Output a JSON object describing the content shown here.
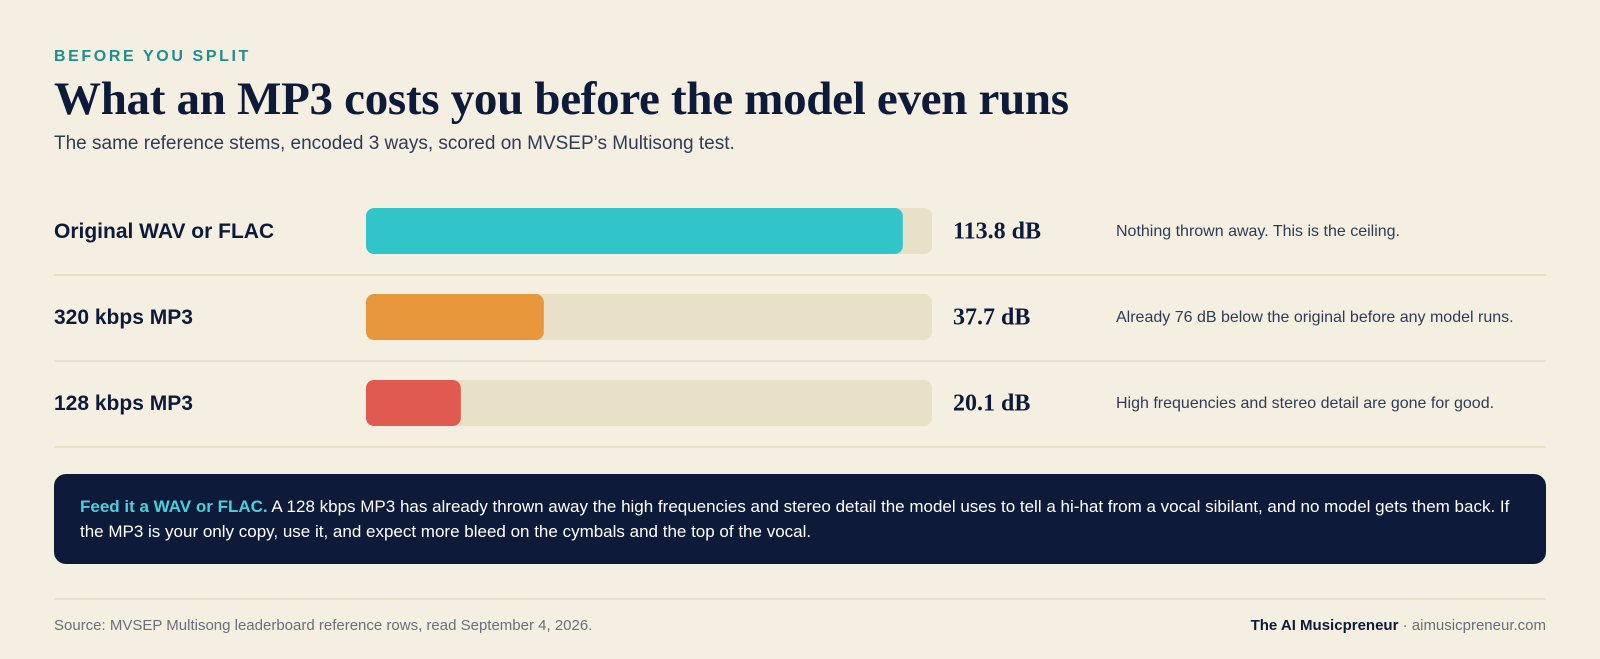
{
  "eyebrow": "BEFORE YOU SPLIT",
  "title": "What an MP3 costs you before the model even runs",
  "subtitle": "The same reference stems, encoded 3 ways, scored on MVSEP’s Multisong test.",
  "chart_data": {
    "type": "bar",
    "orientation": "horizontal",
    "title": "What an MP3 costs you before the model even runs",
    "unit": "dB",
    "xlim": [
      0,
      120
    ],
    "rows": [
      {
        "category": "Original WAV or FLAC",
        "value": 113.8,
        "value_label": "113.8 dB",
        "note": "Nothing thrown away. This is the ceiling.",
        "color": "#31c4c9"
      },
      {
        "category": "320 kbps MP3",
        "value": 37.7,
        "value_label": "37.7 dB",
        "note": "Already 76 dB below the original before any model runs.",
        "color": "#e8973c"
      },
      {
        "category": "128 kbps MP3",
        "value": 20.1,
        "value_label": "20.1 dB",
        "note": "High frequencies and stereo detail are gone for good.",
        "color": "#e05a4f"
      }
    ],
    "track_color": "#e9e0c8"
  },
  "callout": {
    "lead": "Feed it a WAV or FLAC.",
    "body": " A 128 kbps MP3 has already thrown away the high frequencies and stereo detail the model uses to tell a hi-hat from a vocal sibilant, and no model gets them back. If the MP3 is your only copy, use it, and expect more bleed on the cymbals and the top of the vocal."
  },
  "footer": {
    "source": "Source: MVSEP Multisong leaderboard reference rows, read September 4, 2026.",
    "brand_name": "The AI Musicpreneur",
    "brand_sep": " · ",
    "brand_url": "aimusicpreneur.com"
  }
}
